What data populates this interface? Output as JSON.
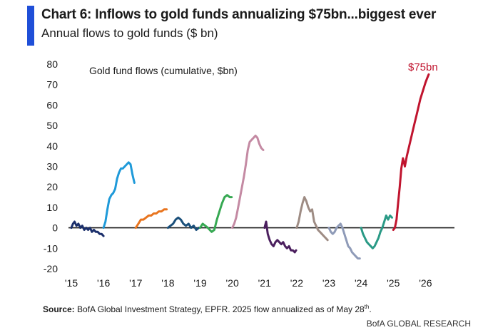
{
  "header": {
    "title": "Chart 6: Inflows to gold funds annualizing $75bn...biggest ever",
    "subtitle": "Annual flows to gold funds ($ bn)",
    "accent_color": "#1f4fd8"
  },
  "footer": {
    "source_label": "Source:",
    "source_text": " BofA Global Investment Strategy, EPFR. 2025 flow annualized as of May 28",
    "source_superscript": "th",
    "source_end": ".",
    "brand": "BofA GLOBAL RESEARCH"
  },
  "chart_data": {
    "type": "line",
    "title": "Chart 6: Inflows to gold funds annualizing $75bn...biggest ever",
    "subtitle": "Annual flows to gold funds ($ bn)",
    "inset_label": "Gold fund flows (cumulative, $bn)",
    "annotation": {
      "text": "$75bn",
      "color": "#c0142e"
    },
    "xlabel": "",
    "ylabel": "",
    "xlim": [
      2015,
      2026.9
    ],
    "ylim": [
      -20,
      80
    ],
    "yticks": [
      -20,
      -10,
      0,
      10,
      20,
      30,
      40,
      50,
      60,
      70,
      80
    ],
    "xticks": [
      {
        "value": 2015,
        "label": "'15"
      },
      {
        "value": 2016,
        "label": "'16"
      },
      {
        "value": 2017,
        "label": "'17"
      },
      {
        "value": 2018,
        "label": "'18"
      },
      {
        "value": 2019,
        "label": "'19"
      },
      {
        "value": 2020,
        "label": "'20"
      },
      {
        "value": 2021,
        "label": "'21"
      },
      {
        "value": 2022,
        "label": "'22"
      },
      {
        "value": 2023,
        "label": "'23"
      },
      {
        "value": 2024,
        "label": "'24"
      },
      {
        "value": 2025,
        "label": "'25"
      },
      {
        "value": 2026,
        "label": "'26"
      }
    ],
    "zero_line": true,
    "grid": false,
    "series": [
      {
        "name": "2015",
        "color": "#1b2f6b",
        "x": [
          2015.0,
          2015.05,
          2015.1,
          2015.16,
          2015.22,
          2015.28,
          2015.34,
          2015.4,
          2015.46,
          2015.52,
          2015.58,
          2015.64,
          2015.7,
          2015.76,
          2015.82,
          2015.88,
          2015.94,
          2016.0
        ],
        "y": [
          0,
          2,
          3,
          1,
          2,
          0,
          1,
          -1,
          0,
          -1,
          0,
          -2,
          -1,
          -2,
          -2,
          -3,
          -3,
          -4
        ]
      },
      {
        "name": "2016",
        "color": "#1f9ad9",
        "x": [
          2016.0,
          2016.06,
          2016.12,
          2016.18,
          2016.24,
          2016.3,
          2016.36,
          2016.42,
          2016.48,
          2016.54,
          2016.6,
          2016.66,
          2016.72,
          2016.78,
          2016.84,
          2016.9,
          2016.96
        ],
        "y": [
          0,
          3,
          9,
          14,
          16,
          17,
          19,
          24,
          27,
          29,
          29,
          30,
          31,
          32,
          31,
          26,
          22
        ]
      },
      {
        "name": "2017",
        "color": "#e8741e",
        "x": [
          2017.0,
          2017.08,
          2017.16,
          2017.24,
          2017.32,
          2017.4,
          2017.48,
          2017.56,
          2017.64,
          2017.72,
          2017.8,
          2017.88,
          2017.96
        ],
        "y": [
          0,
          2,
          4,
          4,
          5,
          6,
          6,
          7,
          7,
          8,
          8,
          9,
          9
        ]
      },
      {
        "name": "2018",
        "color": "#1a4f7a",
        "x": [
          2018.0,
          2018.08,
          2018.16,
          2018.24,
          2018.32,
          2018.4,
          2018.48,
          2018.56,
          2018.64,
          2018.72,
          2018.8,
          2018.88,
          2018.96
        ],
        "y": [
          0,
          1,
          2,
          4,
          5,
          4,
          2,
          1,
          2,
          0,
          1,
          -1,
          0
        ]
      },
      {
        "name": "2019",
        "color": "#36a852",
        "x": [
          2019.0,
          2019.08,
          2019.16,
          2019.24,
          2019.3,
          2019.36,
          2019.44,
          2019.52,
          2019.6,
          2019.68,
          2019.76,
          2019.84,
          2019.92,
          2019.98
        ],
        "y": [
          0,
          2,
          1,
          0,
          -1,
          -2,
          -1,
          4,
          8,
          12,
          15,
          16,
          15,
          15
        ]
      },
      {
        "name": "2020",
        "color": "#c48aa3",
        "x": [
          2020.0,
          2020.06,
          2020.12,
          2020.18,
          2020.24,
          2020.3,
          2020.36,
          2020.42,
          2020.48,
          2020.54,
          2020.6,
          2020.66,
          2020.72,
          2020.78,
          2020.84,
          2020.9,
          2020.96
        ],
        "y": [
          0,
          2,
          5,
          10,
          15,
          20,
          25,
          31,
          38,
          42,
          43,
          44,
          45,
          44,
          41,
          39,
          38
        ]
      },
      {
        "name": "2021",
        "color": "#4b1f5e",
        "x": [
          2021.0,
          2021.05,
          2021.1,
          2021.16,
          2021.22,
          2021.28,
          2021.34,
          2021.4,
          2021.46,
          2021.52,
          2021.58,
          2021.64,
          2021.7,
          2021.76,
          2021.82,
          2021.88,
          2021.94,
          2021.98
        ],
        "y": [
          0,
          3,
          -3,
          -6,
          -8,
          -9,
          -7,
          -6,
          -7,
          -8,
          -7,
          -9,
          -10,
          -9,
          -11,
          -11,
          -12,
          -11
        ]
      },
      {
        "name": "2022",
        "color": "#9e8c84",
        "x": [
          2022.0,
          2022.06,
          2022.12,
          2022.18,
          2022.24,
          2022.3,
          2022.36,
          2022.42,
          2022.48,
          2022.54,
          2022.6,
          2022.66,
          2022.72,
          2022.78,
          2022.84,
          2022.9,
          2022.96
        ],
        "y": [
          0,
          3,
          8,
          12,
          15,
          13,
          10,
          8,
          9,
          3,
          1,
          -1,
          -2,
          -3,
          -4,
          -5,
          -6
        ]
      },
      {
        "name": "2023",
        "color": "#8f9bb8",
        "x": [
          2023.0,
          2023.06,
          2023.12,
          2023.18,
          2023.24,
          2023.3,
          2023.36,
          2023.42,
          2023.48,
          2023.54,
          2023.6,
          2023.66,
          2023.72,
          2023.78,
          2023.84,
          2023.9,
          2023.96
        ],
        "y": [
          0,
          -2,
          -3,
          -2,
          0,
          1,
          2,
          0,
          -3,
          -6,
          -9,
          -10,
          -12,
          -13,
          -14,
          -15,
          -15
        ]
      },
      {
        "name": "2024",
        "color": "#2a9a86",
        "x": [
          2024.0,
          2024.06,
          2024.12,
          2024.18,
          2024.24,
          2024.3,
          2024.36,
          2024.42,
          2024.48,
          2024.54,
          2024.6,
          2024.66,
          2024.72,
          2024.78,
          2024.84,
          2024.9,
          2024.96
        ],
        "y": [
          0,
          -3,
          -5,
          -7,
          -8,
          -9,
          -10,
          -9,
          -7,
          -5,
          -2,
          0,
          3,
          6,
          4,
          6,
          5
        ]
      },
      {
        "name": "2025",
        "color": "#c0142e",
        "x": [
          2025.0,
          2025.05,
          2025.1,
          2025.15,
          2025.2,
          2025.25,
          2025.3,
          2025.36,
          2025.42,
          2025.48,
          2025.54,
          2025.6,
          2025.66,
          2025.72,
          2025.78,
          2025.84,
          2025.9,
          2025.96,
          2026.0,
          2026.05,
          2026.1
        ],
        "y": [
          -1,
          0,
          4,
          12,
          20,
          29,
          34,
          30,
          35,
          39,
          43,
          47,
          51,
          55,
          59,
          63,
          66,
          69,
          71,
          73,
          75
        ]
      }
    ]
  }
}
